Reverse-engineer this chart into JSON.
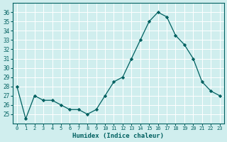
{
  "x": [
    0,
    1,
    2,
    3,
    4,
    5,
    6,
    7,
    8,
    9,
    10,
    11,
    12,
    13,
    14,
    15,
    16,
    17,
    18,
    19,
    20,
    21,
    22,
    23
  ],
  "y": [
    28,
    24.5,
    27,
    26.5,
    26.5,
    26,
    25.5,
    25.5,
    25,
    25.5,
    27,
    28.5,
    29,
    31,
    33,
    35,
    36,
    35.5,
    33.5,
    32.5,
    31,
    28.5,
    27.5,
    27
  ],
  "xlabel": "Humidex (Indice chaleur)",
  "ylim": [
    24,
    37
  ],
  "xlim": [
    -0.5,
    23.5
  ],
  "yticks": [
    25,
    26,
    27,
    28,
    29,
    30,
    31,
    32,
    33,
    34,
    35,
    36
  ],
  "xticks": [
    0,
    1,
    2,
    3,
    4,
    5,
    6,
    7,
    8,
    9,
    10,
    11,
    12,
    13,
    14,
    15,
    16,
    17,
    18,
    19,
    20,
    21,
    22,
    23
  ],
  "line_color": "#006060",
  "marker_color": "#006060",
  "bg_color": "#d0eeee",
  "grid_color": "#ffffff",
  "axis_label_color": "#006060",
  "tick_color": "#006060",
  "font_name": "monospace"
}
